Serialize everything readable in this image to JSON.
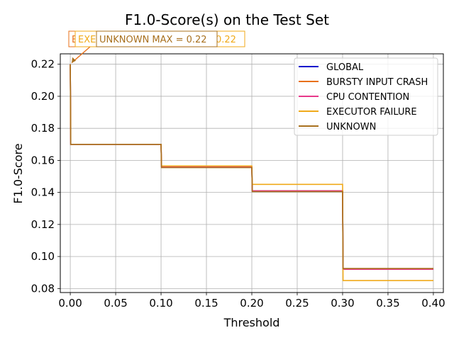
{
  "chart_data": {
    "type": "line",
    "title": "F1.0-Score(s) on the Test Set",
    "xlabel": "Threshold",
    "ylabel": "F1.0-Score",
    "xlim": [
      -0.011,
      0.411
    ],
    "ylim": [
      0.0775,
      0.2265
    ],
    "xticks": [
      0.0,
      0.05,
      0.1,
      0.15,
      0.2,
      0.25,
      0.3,
      0.35,
      0.4
    ],
    "xtick_labels": [
      "0.00",
      "0.05",
      "0.10",
      "0.15",
      "0.20",
      "0.25",
      "0.30",
      "0.35",
      "0.40"
    ],
    "yticks": [
      0.08,
      0.1,
      0.12,
      0.14,
      0.16,
      0.18,
      0.2,
      0.22
    ],
    "ytick_labels": [
      "0.08",
      "0.10",
      "0.12",
      "0.14",
      "0.16",
      "0.18",
      "0.20",
      "0.22"
    ],
    "grid": true,
    "legend_position": "top-right",
    "series": [
      {
        "name": "GLOBAL",
        "color": "#0000cc",
        "x": [
          0.0,
          0.0005,
          0.1,
          0.1005,
          0.2,
          0.2005,
          0.3,
          0.3005,
          0.4
        ],
        "y": [
          0.22,
          0.17,
          0.17,
          0.156,
          0.156,
          0.141,
          0.141,
          0.092,
          0.092
        ]
      },
      {
        "name": "BURSTY INPUT CRASH",
        "color": "#e8701a",
        "x": [
          0.0,
          0.0005,
          0.1,
          0.1005,
          0.2,
          0.2005,
          0.3,
          0.3005,
          0.4
        ],
        "y": [
          0.22,
          0.17,
          0.17,
          0.156,
          0.156,
          0.141,
          0.141,
          0.092,
          0.092
        ]
      },
      {
        "name": "CPU CONTENTION",
        "color": "#e8388a",
        "x": [
          0.0,
          0.0005,
          0.1,
          0.1005,
          0.2,
          0.2005,
          0.3,
          0.3005,
          0.4
        ],
        "y": [
          0.22,
          0.17,
          0.17,
          0.156,
          0.156,
          0.141,
          0.141,
          0.092,
          0.092
        ]
      },
      {
        "name": "EXECUTOR FAILURE",
        "color": "#f0aa1a",
        "x": [
          0.0,
          0.0005,
          0.1,
          0.1005,
          0.2,
          0.2005,
          0.3,
          0.3005,
          0.4
        ],
        "y": [
          0.22,
          0.17,
          0.17,
          0.1565,
          0.1565,
          0.145,
          0.145,
          0.085,
          0.085
        ]
      },
      {
        "name": "UNKNOWN",
        "color": "#a8701e",
        "x": [
          0.0,
          0.0005,
          0.1,
          0.1005,
          0.2,
          0.2005,
          0.3,
          0.3005,
          0.4
        ],
        "y": [
          0.22,
          0.17,
          0.17,
          0.1555,
          0.1555,
          0.1405,
          0.1405,
          0.0925,
          0.0925
        ]
      }
    ],
    "annotations": [
      {
        "text": "E",
        "color": "#e8701a",
        "x": 0.0,
        "y": 0.22
      },
      {
        "text": "EXE",
        "color": "#f0aa1a",
        "x": 0.0,
        "y": 0.22
      },
      {
        "text": "UNKNOWN MAX = 0.22",
        "color": "#a8701e",
        "x": 0.0,
        "y": 0.22
      },
      {
        "text": "0.22",
        "color": "#f0aa1a",
        "x": 0.0,
        "y": 0.22
      }
    ]
  }
}
